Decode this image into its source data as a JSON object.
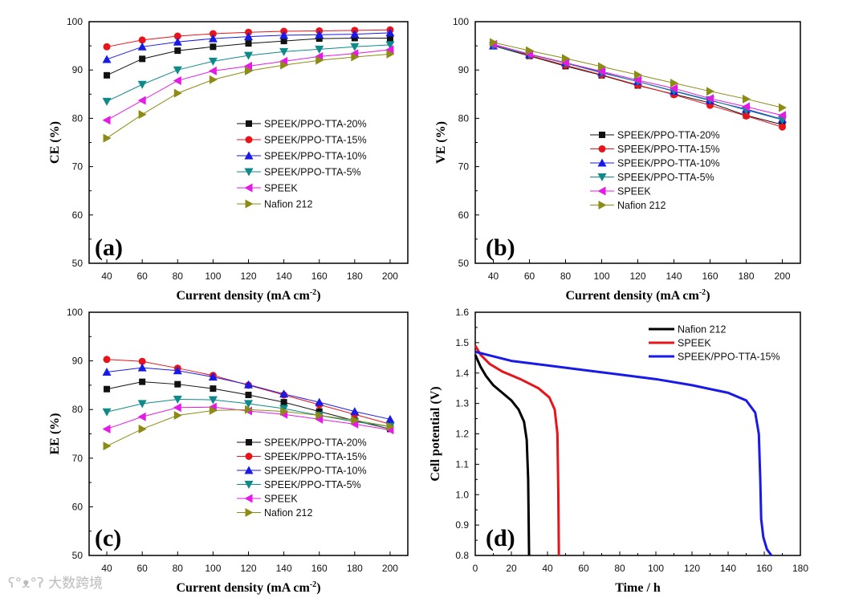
{
  "chart_data": [
    {
      "panel": "(a)",
      "type": "line",
      "xlabel": "Current density (mA cm",
      "xlabel_sup": "-2",
      "xlabel_end": ")",
      "ylabel": "CE (%)",
      "xlim": [
        30,
        210
      ],
      "ylim": [
        50,
        100
      ],
      "xticks": [
        40,
        60,
        80,
        100,
        120,
        140,
        160,
        180,
        200
      ],
      "yticks": [
        50,
        60,
        70,
        80,
        90,
        100
      ],
      "legend": "center-right",
      "x": [
        40,
        60,
        80,
        100,
        120,
        140,
        160,
        180,
        200
      ],
      "series": [
        {
          "name": "SPEEK/PPO-TTA-20%",
          "color": "#111111",
          "marker": "square",
          "values": [
            88.9,
            92.3,
            94.0,
            94.8,
            95.5,
            96.0,
            96.5,
            96.6,
            96.6
          ]
        },
        {
          "name": "SPEEK/PPO-TTA-15%",
          "color": "#e8141b",
          "marker": "circle",
          "values": [
            94.8,
            96.2,
            97.0,
            97.5,
            97.8,
            98.0,
            98.1,
            98.2,
            98.3
          ]
        },
        {
          "name": "SPEEK/PPO-TTA-10%",
          "color": "#1a1ae6",
          "marker": "triangle-up",
          "values": [
            92.2,
            94.8,
            95.8,
            96.5,
            96.9,
            97.2,
            97.3,
            97.4,
            97.7
          ]
        },
        {
          "name": "SPEEK/PPO-TTA-5%",
          "color": "#0f8a8a",
          "marker": "triangle-down",
          "values": [
            83.5,
            87.0,
            90.0,
            91.8,
            93.0,
            93.8,
            94.3,
            94.8,
            95.2
          ]
        },
        {
          "name": "SPEEK",
          "color": "#e61ae6",
          "marker": "triangle-left",
          "values": [
            79.6,
            83.7,
            87.8,
            89.8,
            90.8,
            91.8,
            92.8,
            93.4,
            94.2
          ]
        },
        {
          "name": "Nafion 212",
          "color": "#8c8c14",
          "marker": "triangle-right",
          "values": [
            75.9,
            80.8,
            85.2,
            88.0,
            89.8,
            91.0,
            92.0,
            92.7,
            93.3
          ]
        }
      ]
    },
    {
      "panel": "(b)",
      "type": "line",
      "xlabel": "Current density (mA cm",
      "xlabel_sup": "-2",
      "xlabel_end": ")",
      "ylabel": "VE (%)",
      "xlim": [
        30,
        210
      ],
      "ylim": [
        50,
        100
      ],
      "xticks": [
        40,
        60,
        80,
        100,
        120,
        140,
        160,
        180,
        200
      ],
      "yticks": [
        50,
        60,
        70,
        80,
        90,
        100
      ],
      "legend": "bottom-left",
      "x": [
        40,
        60,
        80,
        100,
        120,
        140,
        160,
        180,
        200
      ],
      "series": [
        {
          "name": "SPEEK/PPO-TTA-20%",
          "color": "#111111",
          "marker": "square",
          "values": [
            95.0,
            92.9,
            90.8,
            88.9,
            86.8,
            85.0,
            83.2,
            80.6,
            78.7
          ]
        },
        {
          "name": "SPEEK/PPO-TTA-15%",
          "color": "#e8141b",
          "marker": "circle",
          "values": [
            95.2,
            93.0,
            91.0,
            89.0,
            86.9,
            84.9,
            82.7,
            80.5,
            78.2
          ]
        },
        {
          "name": "SPEEK/PPO-TTA-10%",
          "color": "#1a1ae6",
          "marker": "triangle-up",
          "values": [
            95.0,
            93.2,
            91.5,
            89.5,
            87.6,
            85.6,
            83.7,
            81.9,
            79.8
          ]
        },
        {
          "name": "SPEEK/PPO-TTA-5%",
          "color": "#0f8a8a",
          "marker": "triangle-down",
          "values": [
            95.0,
            93.2,
            91.4,
            89.4,
            87.6,
            85.7,
            83.8,
            81.7,
            79.7
          ]
        },
        {
          "name": "SPEEK",
          "color": "#e61ae6",
          "marker": "triangle-left",
          "values": [
            95.3,
            93.3,
            91.5,
            89.7,
            87.9,
            86.2,
            84.1,
            82.4,
            80.6
          ]
        },
        {
          "name": "Nafion 212",
          "color": "#8c8c14",
          "marker": "triangle-right",
          "values": [
            95.7,
            94.0,
            92.4,
            90.7,
            89.0,
            87.3,
            85.6,
            84.0,
            82.2
          ]
        }
      ]
    },
    {
      "panel": "(c)",
      "type": "line",
      "xlabel": "Current density (mA cm",
      "xlabel_sup": "-2",
      "xlabel_end": ")",
      "ylabel": "EE (%)",
      "xlim": [
        30,
        210
      ],
      "ylim": [
        50,
        100
      ],
      "xticks": [
        40,
        60,
        80,
        100,
        120,
        140,
        160,
        180,
        200
      ],
      "yticks": [
        50,
        60,
        70,
        80,
        90,
        100
      ],
      "legend": "bottom-center",
      "x": [
        40,
        60,
        80,
        100,
        120,
        140,
        160,
        180,
        200
      ],
      "series": [
        {
          "name": "SPEEK/PPO-TTA-20%",
          "color": "#111111",
          "marker": "square",
          "values": [
            84.2,
            85.7,
            85.2,
            84.3,
            83.0,
            81.5,
            79.6,
            77.7,
            76.0
          ]
        },
        {
          "name": "SPEEK/PPO-TTA-15%",
          "color": "#e8141b",
          "marker": "circle",
          "values": [
            90.3,
            89.9,
            88.5,
            87.0,
            85.0,
            83.0,
            81.0,
            79.0,
            77.0
          ]
        },
        {
          "name": "SPEEK/PPO-TTA-10%",
          "color": "#1a1ae6",
          "marker": "triangle-up",
          "values": [
            87.7,
            88.6,
            88.0,
            86.7,
            85.1,
            83.2,
            81.5,
            79.6,
            78.0
          ]
        },
        {
          "name": "SPEEK/PPO-TTA-5%",
          "color": "#0f8a8a",
          "marker": "triangle-down",
          "values": [
            79.5,
            81.2,
            82.1,
            82.0,
            81.2,
            80.2,
            78.8,
            77.5,
            76.5
          ]
        },
        {
          "name": "SPEEK",
          "color": "#e61ae6",
          "marker": "triangle-left",
          "values": [
            76.0,
            78.5,
            80.4,
            80.5,
            79.7,
            79.0,
            78.0,
            77.0,
            75.8
          ]
        },
        {
          "name": "Nafion 212",
          "color": "#8c8c14",
          "marker": "triangle-right",
          "values": [
            72.5,
            76.0,
            78.8,
            79.8,
            80.0,
            79.6,
            78.8,
            77.8,
            76.5
          ]
        }
      ]
    },
    {
      "panel": "(d)",
      "type": "line",
      "xlabel": "Time / h",
      "ylabel": "Cell potential (V)",
      "xlim": [
        0,
        180
      ],
      "ylim": [
        0.8,
        1.6
      ],
      "xticks": [
        0,
        20,
        40,
        60,
        80,
        100,
        120,
        140,
        160,
        180
      ],
      "yticks": [
        0.8,
        0.9,
        1.0,
        1.1,
        1.2,
        1.3,
        1.4,
        1.5,
        1.6
      ],
      "legend": "top-center",
      "series": [
        {
          "name": "Nafion 212",
          "color": "#000000",
          "points": [
            [
              0,
              1.46
            ],
            [
              3,
              1.42
            ],
            [
              6,
              1.39
            ],
            [
              10,
              1.36
            ],
            [
              15,
              1.335
            ],
            [
              20,
              1.31
            ],
            [
              24,
              1.28
            ],
            [
              27,
              1.24
            ],
            [
              28.5,
              1.18
            ],
            [
              29.3,
              1.05
            ],
            [
              29.6,
              0.9
            ],
            [
              29.8,
              0.8
            ]
          ]
        },
        {
          "name": "SPEEK",
          "color": "#e8141b",
          "points": [
            [
              0,
              1.49
            ],
            [
              3,
              1.46
            ],
            [
              8,
              1.43
            ],
            [
              15,
              1.405
            ],
            [
              25,
              1.38
            ],
            [
              35,
              1.35
            ],
            [
              41,
              1.32
            ],
            [
              44,
              1.28
            ],
            [
              45.5,
              1.2
            ],
            [
              46,
              1.0
            ],
            [
              46.3,
              0.8
            ]
          ]
        },
        {
          "name": "SPEEK/PPO-TTA-15%",
          "color": "#1a1ae6",
          "points": [
            [
              0,
              1.47
            ],
            [
              10,
              1.455
            ],
            [
              20,
              1.44
            ],
            [
              40,
              1.425
            ],
            [
              60,
              1.41
            ],
            [
              80,
              1.395
            ],
            [
              100,
              1.38
            ],
            [
              120,
              1.36
            ],
            [
              140,
              1.335
            ],
            [
              150,
              1.31
            ],
            [
              155,
              1.27
            ],
            [
              157,
              1.2
            ],
            [
              157.8,
              1.05
            ],
            [
              158.3,
              0.92
            ],
            [
              159.5,
              0.86
            ],
            [
              161.5,
              0.82
            ],
            [
              164,
              0.8
            ]
          ]
        }
      ]
    }
  ],
  "watermark": "大数跨境"
}
